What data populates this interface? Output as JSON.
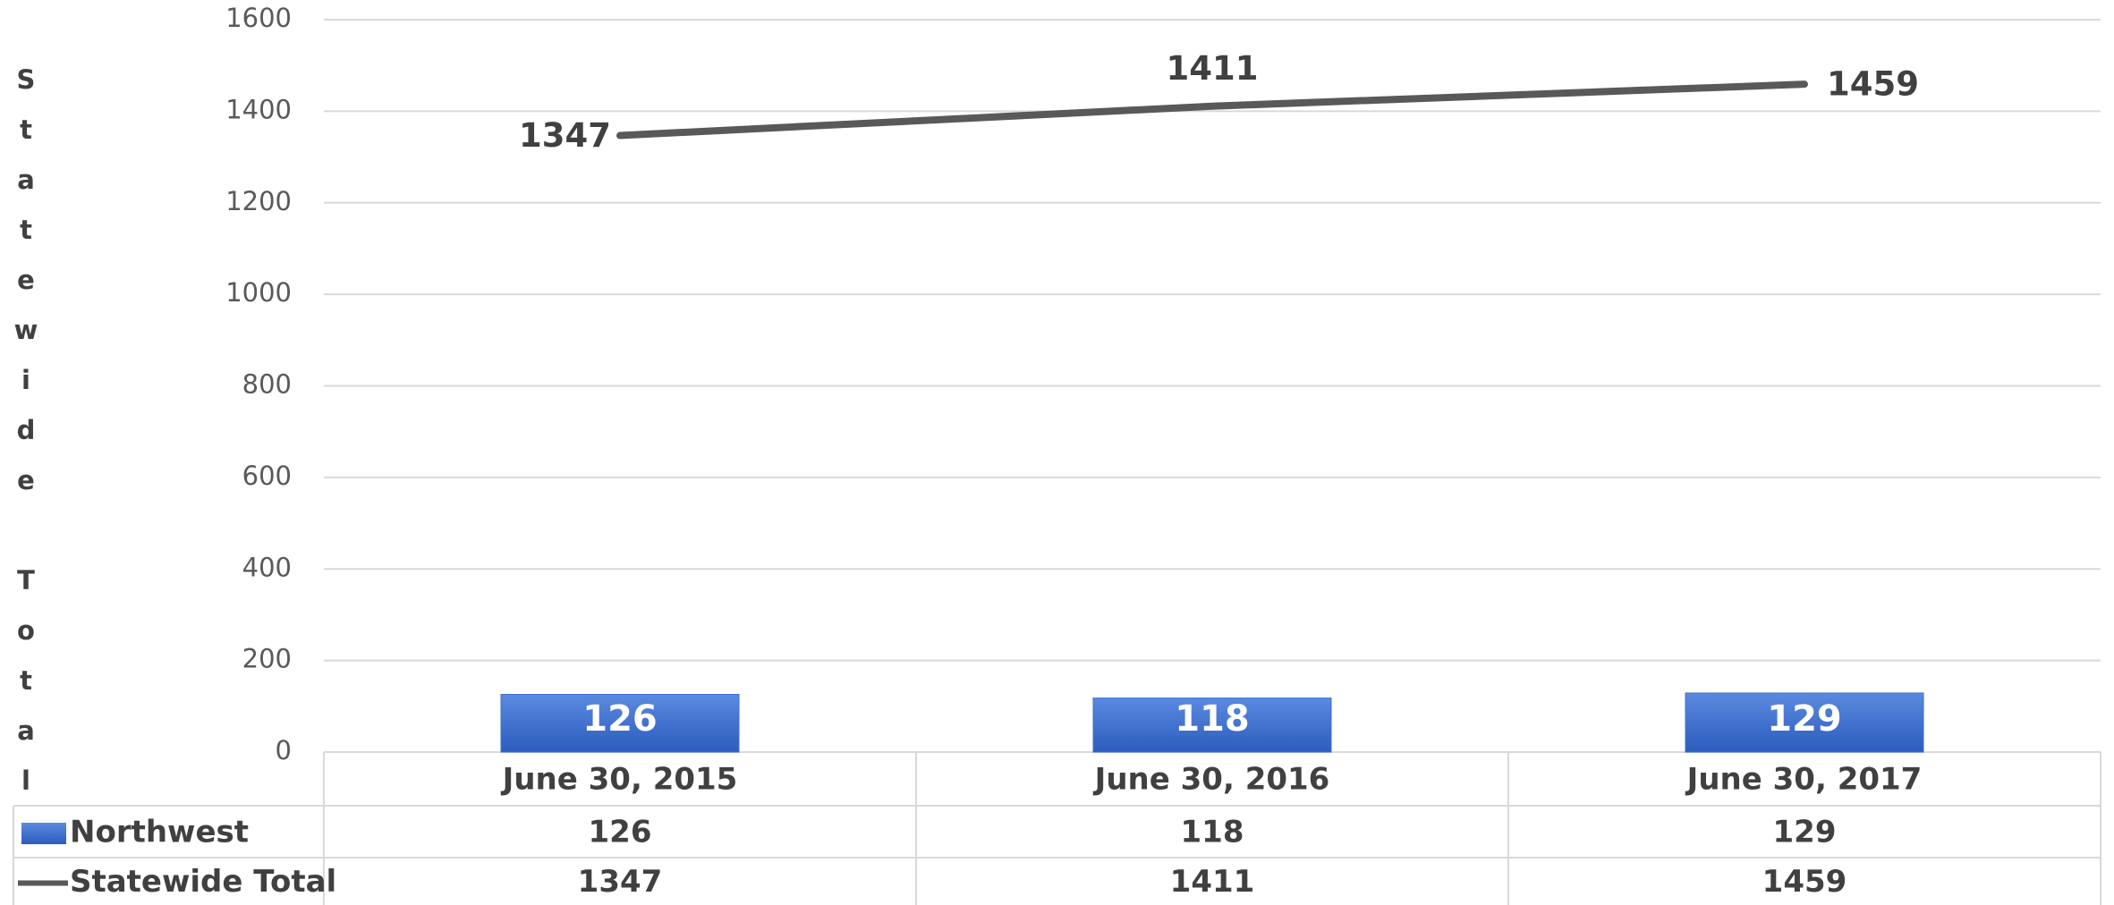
{
  "chart_data": {
    "type": "bar_line",
    "y_axis_label": "Statewide Total",
    "categories": [
      "June 30, 2015",
      "June 30, 2016",
      "June 30, 2017"
    ],
    "series": [
      {
        "name": "Northwest",
        "type": "bar",
        "color": "#3d6fcf",
        "values": [
          126,
          118,
          129
        ]
      },
      {
        "name": "Statewide Total",
        "type": "line",
        "color": "#595959",
        "values": [
          1347,
          1411,
          1459
        ]
      }
    ],
    "ylim": [
      0,
      1600
    ],
    "yticks": [
      0,
      200,
      400,
      600,
      800,
      1000,
      1200,
      1400,
      1600
    ],
    "grid": true,
    "data_table": true
  }
}
